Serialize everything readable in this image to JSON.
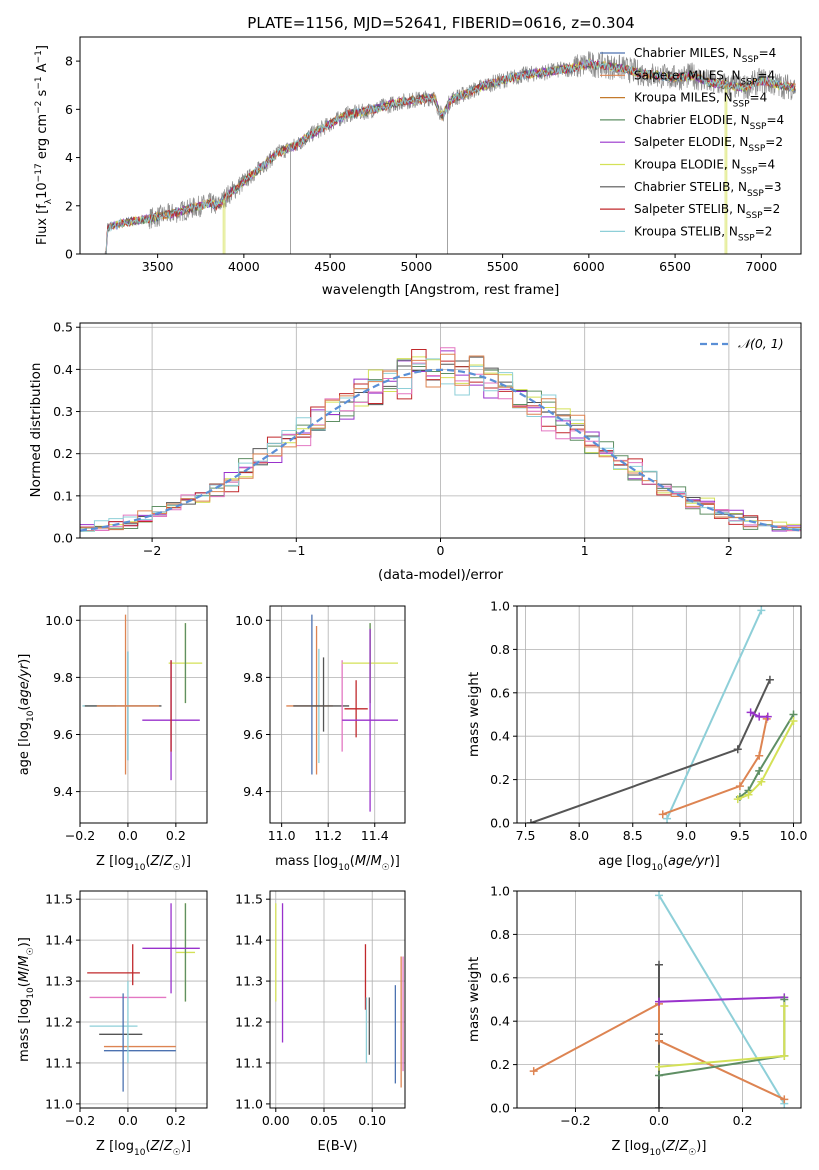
{
  "figure": {
    "title": "PLATE=1156, MJD=52641, FIBERID=0616, z=0.304"
  },
  "colors": {
    "chabrier_miles": "#4c72b0",
    "salpeter_miles": "#dd8452",
    "kroupa_miles": "#c47a2c",
    "chabrier_elodie": "#5f8f64",
    "salpeter_elodie": "#9932cc",
    "kroupa_elodie": "#d4e157",
    "chabrier_stelib": "#555555",
    "salpeter_stelib": "#c0282b",
    "kroupa_stelib": "#8ecfd8",
    "pink": "#e377c2",
    "grey": "#7f7f7f",
    "normal_curve": "#5a8fd6",
    "grid": "#b0b0b0"
  },
  "chart_data": [
    {
      "id": "spectrum",
      "type": "line",
      "xlabel": "wavelength [Angstrom, rest frame]",
      "ylabel": "Flux [f_λ 10^-17 erg cm^-2 s^-1 A^-1]",
      "xlim": [
        3050,
        7230
      ],
      "ylim": [
        0,
        9
      ],
      "xticks": [
        3500,
        4000,
        4500,
        5000,
        5500,
        6000,
        6500,
        7000
      ],
      "yticks": [
        0,
        2,
        4,
        6,
        8
      ],
      "grid": false,
      "legend_placement": "top-right",
      "continuum": {
        "x": [
          3200,
          3210,
          3300,
          3400,
          3500,
          3600,
          3700,
          3800,
          3850,
          3900,
          4000,
          4100,
          4200,
          4300,
          4400,
          4500,
          4600,
          4700,
          4800,
          4900,
          5000,
          5100,
          5150,
          5200,
          5300,
          5400,
          5500,
          5600,
          5700,
          5800,
          5900,
          6000,
          6100,
          6200,
          6300,
          6400,
          6500,
          6600,
          6700,
          6800,
          6900,
          7000,
          7100,
          7200
        ],
        "y": [
          0,
          1.1,
          1.3,
          1.4,
          1.55,
          1.7,
          1.9,
          2.1,
          2.0,
          2.4,
          3.0,
          3.6,
          4.2,
          4.5,
          5.0,
          5.4,
          5.8,
          5.9,
          6.1,
          6.3,
          6.4,
          6.5,
          5.7,
          6.4,
          6.7,
          7.0,
          7.2,
          7.4,
          7.5,
          7.6,
          7.7,
          7.9,
          7.8,
          7.7,
          7.5,
          7.4,
          7.3,
          7.4,
          7.1,
          7.0,
          6.9,
          7.2,
          7.0,
          6.9
        ]
      },
      "series": [
        {
          "name": "Chabrier MILES, N_SSP=4",
          "color_key": "chabrier_miles"
        },
        {
          "name": "Salpeter MILES, N_SSP=4",
          "color_key": "salpeter_miles"
        },
        {
          "name": "Kroupa MILES, N_SSP=4",
          "color_key": "kroupa_miles"
        },
        {
          "name": "Chabrier ELODIE, N_SSP=4",
          "color_key": "chabrier_elodie"
        },
        {
          "name": "Salpeter ELODIE, N_SSP=2",
          "color_key": "salpeter_elodie"
        },
        {
          "name": "Kroupa ELODIE, N_SSP=4",
          "color_key": "kroupa_elodie"
        },
        {
          "name": "Chabrier STELIB, N_SSP=3",
          "color_key": "chabrier_stelib"
        },
        {
          "name": "Salpeter STELIB, N_SSP=2",
          "color_key": "salpeter_stelib"
        },
        {
          "name": "Kroupa STELIB, N_SSP=2",
          "color_key": "kroupa_stelib"
        }
      ]
    },
    {
      "id": "residuals",
      "type": "line",
      "xlabel": "(data-model)/error",
      "ylabel": "Normed distribution",
      "xlim": [
        -2.5,
        2.5
      ],
      "ylim": [
        0,
        0.51
      ],
      "xticks": [
        -2,
        -1,
        0,
        1,
        2
      ],
      "yticks": [
        0.0,
        0.1,
        0.2,
        0.3,
        0.4,
        0.5
      ],
      "grid": true,
      "legend_placement": "top-right",
      "legend_label": "𝒩(0, 1)",
      "bins": {
        "start": -2.5,
        "width": 0.1,
        "count": 50
      },
      "histogram_colors": [
        "kroupa_elodie",
        "chabrier_stelib",
        "salpeter_elodie",
        "chabrier_elodie",
        "salpeter_stelib",
        "pink",
        "kroupa_stelib",
        "salpeter_miles"
      ]
    },
    {
      "id": "age_vs_Z",
      "type": "scatter",
      "xlabel": "Z [log10(Z/Z☉)]",
      "ylabel": "age [log10(age/yr)]",
      "xlim": [
        -0.2,
        0.33
      ],
      "ylim": [
        9.29,
        10.05
      ],
      "xticks": [
        -0.2,
        0.0,
        0.2
      ],
      "yticks": [
        9.4,
        9.6,
        9.8,
        10.0
      ],
      "grid": true,
      "points": [
        {
          "x": -0.12,
          "y": 9.7,
          "xerr": 0.07,
          "yerr": 0,
          "color_key": "kroupa_stelib"
        },
        {
          "x": -0.02,
          "y": 9.7,
          "xerr": 0.16,
          "yerr": 0,
          "color_key": "chabrier_stelib"
        },
        {
          "x": 0.0,
          "y": 9.7,
          "xerr": 0.0,
          "yerr": 0.19,
          "color_key": "chabrier_miles"
        },
        {
          "x": 0.0,
          "y": 9.7,
          "xerr": 0.0,
          "yerr": 0.19,
          "color_key": "kroupa_stelib"
        },
        {
          "x": -0.01,
          "y": 9.74,
          "xerr": 0.0,
          "yerr": 0.28,
          "color_key": "salpeter_miles"
        },
        {
          "x": 0.0,
          "y": 9.7,
          "xerr": 0.13,
          "yerr": 0,
          "color_key": "salpeter_miles"
        },
        {
          "x": 0.24,
          "y": 9.85,
          "xerr": 0.07,
          "yerr": 0.14,
          "color_key": "kroupa_elodie"
        },
        {
          "x": 0.24,
          "y": 9.85,
          "xerr": 0.0,
          "yerr": 0.14,
          "color_key": "chabrier_elodie"
        },
        {
          "x": 0.18,
          "y": 9.65,
          "xerr": 0.12,
          "yerr": 0.21,
          "color_key": "salpeter_elodie"
        },
        {
          "x": 0.18,
          "y": 9.7,
          "xerr": 0.0,
          "yerr": 0.16,
          "color_key": "salpeter_stelib"
        }
      ]
    },
    {
      "id": "age_vs_mass",
      "type": "scatter",
      "xlabel": "mass [log10(M/M☉)]",
      "ylabel": "",
      "xlim": [
        10.95,
        11.53
      ],
      "ylim": [
        9.29,
        10.05
      ],
      "xticks": [
        11.0,
        11.2,
        11.4
      ],
      "yticks": [
        9.4,
        9.6,
        9.8,
        10.0
      ],
      "grid": true,
      "points": [
        {
          "x": 11.12,
          "y": 9.7,
          "xerr": 0.1,
          "yerr": 0,
          "color_key": "salpeter_miles"
        },
        {
          "x": 11.13,
          "y": 9.74,
          "xerr": 0.0,
          "yerr": 0.28,
          "color_key": "chabrier_miles"
        },
        {
          "x": 11.15,
          "y": 9.72,
          "xerr": 0.0,
          "yerr": 0.26,
          "color_key": "salpeter_miles"
        },
        {
          "x": 11.16,
          "y": 9.7,
          "xerr": 0.0,
          "yerr": 0.2,
          "color_key": "kroupa_stelib"
        },
        {
          "x": 11.17,
          "y": 9.7,
          "xerr": 0.12,
          "yerr": 0.0,
          "color_key": "chabrier_stelib"
        },
        {
          "x": 11.18,
          "y": 9.74,
          "xerr": 0.0,
          "yerr": 0.13,
          "color_key": "chabrier_stelib"
        },
        {
          "x": 11.26,
          "y": 9.7,
          "xerr": 0.0,
          "yerr": 0.16,
          "color_key": "pink"
        },
        {
          "x": 11.32,
          "y": 9.69,
          "xerr": 0.05,
          "yerr": 0.1,
          "color_key": "salpeter_stelib"
        },
        {
          "x": 11.38,
          "y": 9.85,
          "xerr": 0.12,
          "yerr": 0.14,
          "color_key": "kroupa_elodie"
        },
        {
          "x": 11.38,
          "y": 9.85,
          "xerr": 0.0,
          "yerr": 0.14,
          "color_key": "chabrier_elodie"
        },
        {
          "x": 11.38,
          "y": 9.65,
          "xerr": 0.12,
          "yerr": 0.32,
          "color_key": "salpeter_elodie"
        }
      ]
    },
    {
      "id": "weight_vs_age",
      "type": "line",
      "xlabel": "age [log10(age/yr)]",
      "ylabel": "mass weight",
      "xlim": [
        7.42,
        10.07
      ],
      "ylim": [
        0,
        1
      ],
      "xticks": [
        7.5,
        8.0,
        8.5,
        9.0,
        9.5,
        10.0
      ],
      "yticks": [
        0.0,
        0.2,
        0.4,
        0.6,
        0.8,
        1.0
      ],
      "grid": true,
      "series": [
        {
          "color_key": "kroupa_stelib",
          "x": [
            8.82,
            9.7
          ],
          "y": [
            0.02,
            0.98
          ]
        },
        {
          "color_key": "chabrier_stelib",
          "x": [
            7.55,
            9.48,
            9.78
          ],
          "y": [
            0.0,
            0.34,
            0.66
          ]
        },
        {
          "color_key": "salpeter_miles",
          "x": [
            8.78,
            9.5,
            9.68,
            9.75
          ],
          "y": [
            0.04,
            0.17,
            0.31,
            0.48
          ]
        },
        {
          "color_key": "salpeter_elodie",
          "x": [
            9.6,
            9.68,
            9.76
          ],
          "y": [
            0.51,
            0.49,
            0.49
          ]
        },
        {
          "color_key": "chabrier_elodie",
          "x": [
            9.5,
            9.58,
            9.68,
            10.0
          ],
          "y": [
            0.12,
            0.15,
            0.24,
            0.5
          ]
        },
        {
          "color_key": "kroupa_elodie",
          "x": [
            9.48,
            9.58,
            9.7,
            10.0
          ],
          "y": [
            0.11,
            0.13,
            0.19,
            0.47
          ]
        }
      ]
    },
    {
      "id": "mass_vs_Z",
      "type": "scatter",
      "xlabel": "Z [log10(Z/Z☉)]",
      "ylabel": "mass [log10(M/M☉)]",
      "xlim": [
        -0.2,
        0.33
      ],
      "ylim": [
        10.99,
        11.52
      ],
      "xticks": [
        -0.2,
        0.0,
        0.2
      ],
      "yticks": [
        11.0,
        11.1,
        11.2,
        11.3,
        11.4,
        11.5
      ],
      "grid": true,
      "points": [
        {
          "x": -0.06,
          "y": 11.32,
          "xerr": 0.11,
          "yerr": 0,
          "color_key": "salpeter_stelib"
        },
        {
          "x": 0.0,
          "y": 11.26,
          "xerr": 0.16,
          "yerr": 0,
          "color_key": "pink"
        },
        {
          "x": -0.06,
          "y": 11.19,
          "xerr": 0.1,
          "yerr": 0,
          "color_key": "kroupa_stelib"
        },
        {
          "x": -0.03,
          "y": 11.17,
          "xerr": 0.09,
          "yerr": 0,
          "color_key": "chabrier_stelib"
        },
        {
          "x": 0.05,
          "y": 11.14,
          "xerr": 0.15,
          "yerr": 0,
          "color_key": "salpeter_miles"
        },
        {
          "x": 0.05,
          "y": 11.13,
          "xerr": 0.15,
          "yerr": 0,
          "color_key": "chabrier_miles"
        },
        {
          "x": -0.02,
          "y": 11.15,
          "xerr": 0.0,
          "yerr": 0.12,
          "color_key": "chabrier_miles"
        },
        {
          "x": 0.0,
          "y": 11.2,
          "xerr": 0.0,
          "yerr": 0.1,
          "color_key": "kroupa_stelib"
        },
        {
          "x": 0.02,
          "y": 11.34,
          "xerr": 0.0,
          "yerr": 0.05,
          "color_key": "salpeter_stelib"
        },
        {
          "x": 0.24,
          "y": 11.37,
          "xerr": 0.04,
          "yerr": 0.12,
          "color_key": "kroupa_elodie"
        },
        {
          "x": 0.24,
          "y": 11.37,
          "xerr": 0.0,
          "yerr": 0.12,
          "color_key": "chabrier_elodie"
        },
        {
          "x": 0.18,
          "y": 11.38,
          "xerr": 0.12,
          "yerr": 0.11,
          "color_key": "salpeter_elodie"
        }
      ]
    },
    {
      "id": "mass_vs_ebv",
      "type": "scatter",
      "xlabel": "E(B-V)",
      "ylabel": "",
      "xlim": [
        -0.006,
        0.134
      ],
      "ylim": [
        10.99,
        11.52
      ],
      "xticks": [
        0.0,
        0.05,
        0.1
      ],
      "yticks": [
        11.0,
        11.1,
        11.2,
        11.3,
        11.4,
        11.5
      ],
      "grid": true,
      "points": [
        {
          "x": 0.0,
          "y": 11.37,
          "xerr": 0,
          "yerr": 0.12,
          "color_key": "kroupa_elodie"
        },
        {
          "x": 0.007,
          "y": 11.32,
          "xerr": 0,
          "yerr": 0.17,
          "color_key": "salpeter_elodie"
        },
        {
          "x": 0.093,
          "y": 11.31,
          "xerr": 0,
          "yerr": 0.08,
          "color_key": "salpeter_stelib"
        },
        {
          "x": 0.094,
          "y": 11.18,
          "xerr": 0,
          "yerr": 0.08,
          "color_key": "kroupa_stelib"
        },
        {
          "x": 0.097,
          "y": 11.19,
          "xerr": 0,
          "yerr": 0.07,
          "color_key": "chabrier_stelib"
        },
        {
          "x": 0.124,
          "y": 11.17,
          "xerr": 0,
          "yerr": 0.12,
          "color_key": "chabrier_miles"
        },
        {
          "x": 0.13,
          "y": 11.2,
          "xerr": 0,
          "yerr": 0.16,
          "color_key": "salpeter_miles"
        },
        {
          "x": 0.132,
          "y": 11.22,
          "xerr": 0,
          "yerr": 0.14,
          "color_key": "pink"
        }
      ]
    },
    {
      "id": "weight_vs_Z",
      "type": "line",
      "xlabel": "Z [log10(Z/Z☉)]",
      "ylabel": "mass weight",
      "xlim": [
        -0.34,
        0.34
      ],
      "ylim": [
        0,
        1
      ],
      "xticks": [
        -0.2,
        0.0,
        0.2
      ],
      "yticks": [
        0.0,
        0.2,
        0.4,
        0.6,
        0.8,
        1.0
      ],
      "grid": true,
      "series": [
        {
          "color_key": "kroupa_stelib",
          "x": [
            0.0,
            0.3
          ],
          "y": [
            0.98,
            0.02
          ]
        },
        {
          "color_key": "chabrier_stelib",
          "x": [
            0.0,
            0.0,
            0.0
          ],
          "y": [
            0.0,
            0.34,
            0.66
          ]
        },
        {
          "color_key": "salpeter_miles",
          "x": [
            -0.3,
            0.0,
            0.0,
            0.3
          ],
          "y": [
            0.17,
            0.48,
            0.31,
            0.04
          ]
        },
        {
          "color_key": "salpeter_elodie",
          "x": [
            0.0,
            0.3
          ],
          "y": [
            0.49,
            0.51
          ]
        },
        {
          "color_key": "chabrier_elodie",
          "x": [
            0.0,
            0.3,
            0.3
          ],
          "y": [
            0.15,
            0.24,
            0.5
          ]
        },
        {
          "color_key": "kroupa_elodie",
          "x": [
            0.0,
            0.3,
            0.3
          ],
          "y": [
            0.19,
            0.24,
            0.47
          ]
        }
      ]
    }
  ]
}
